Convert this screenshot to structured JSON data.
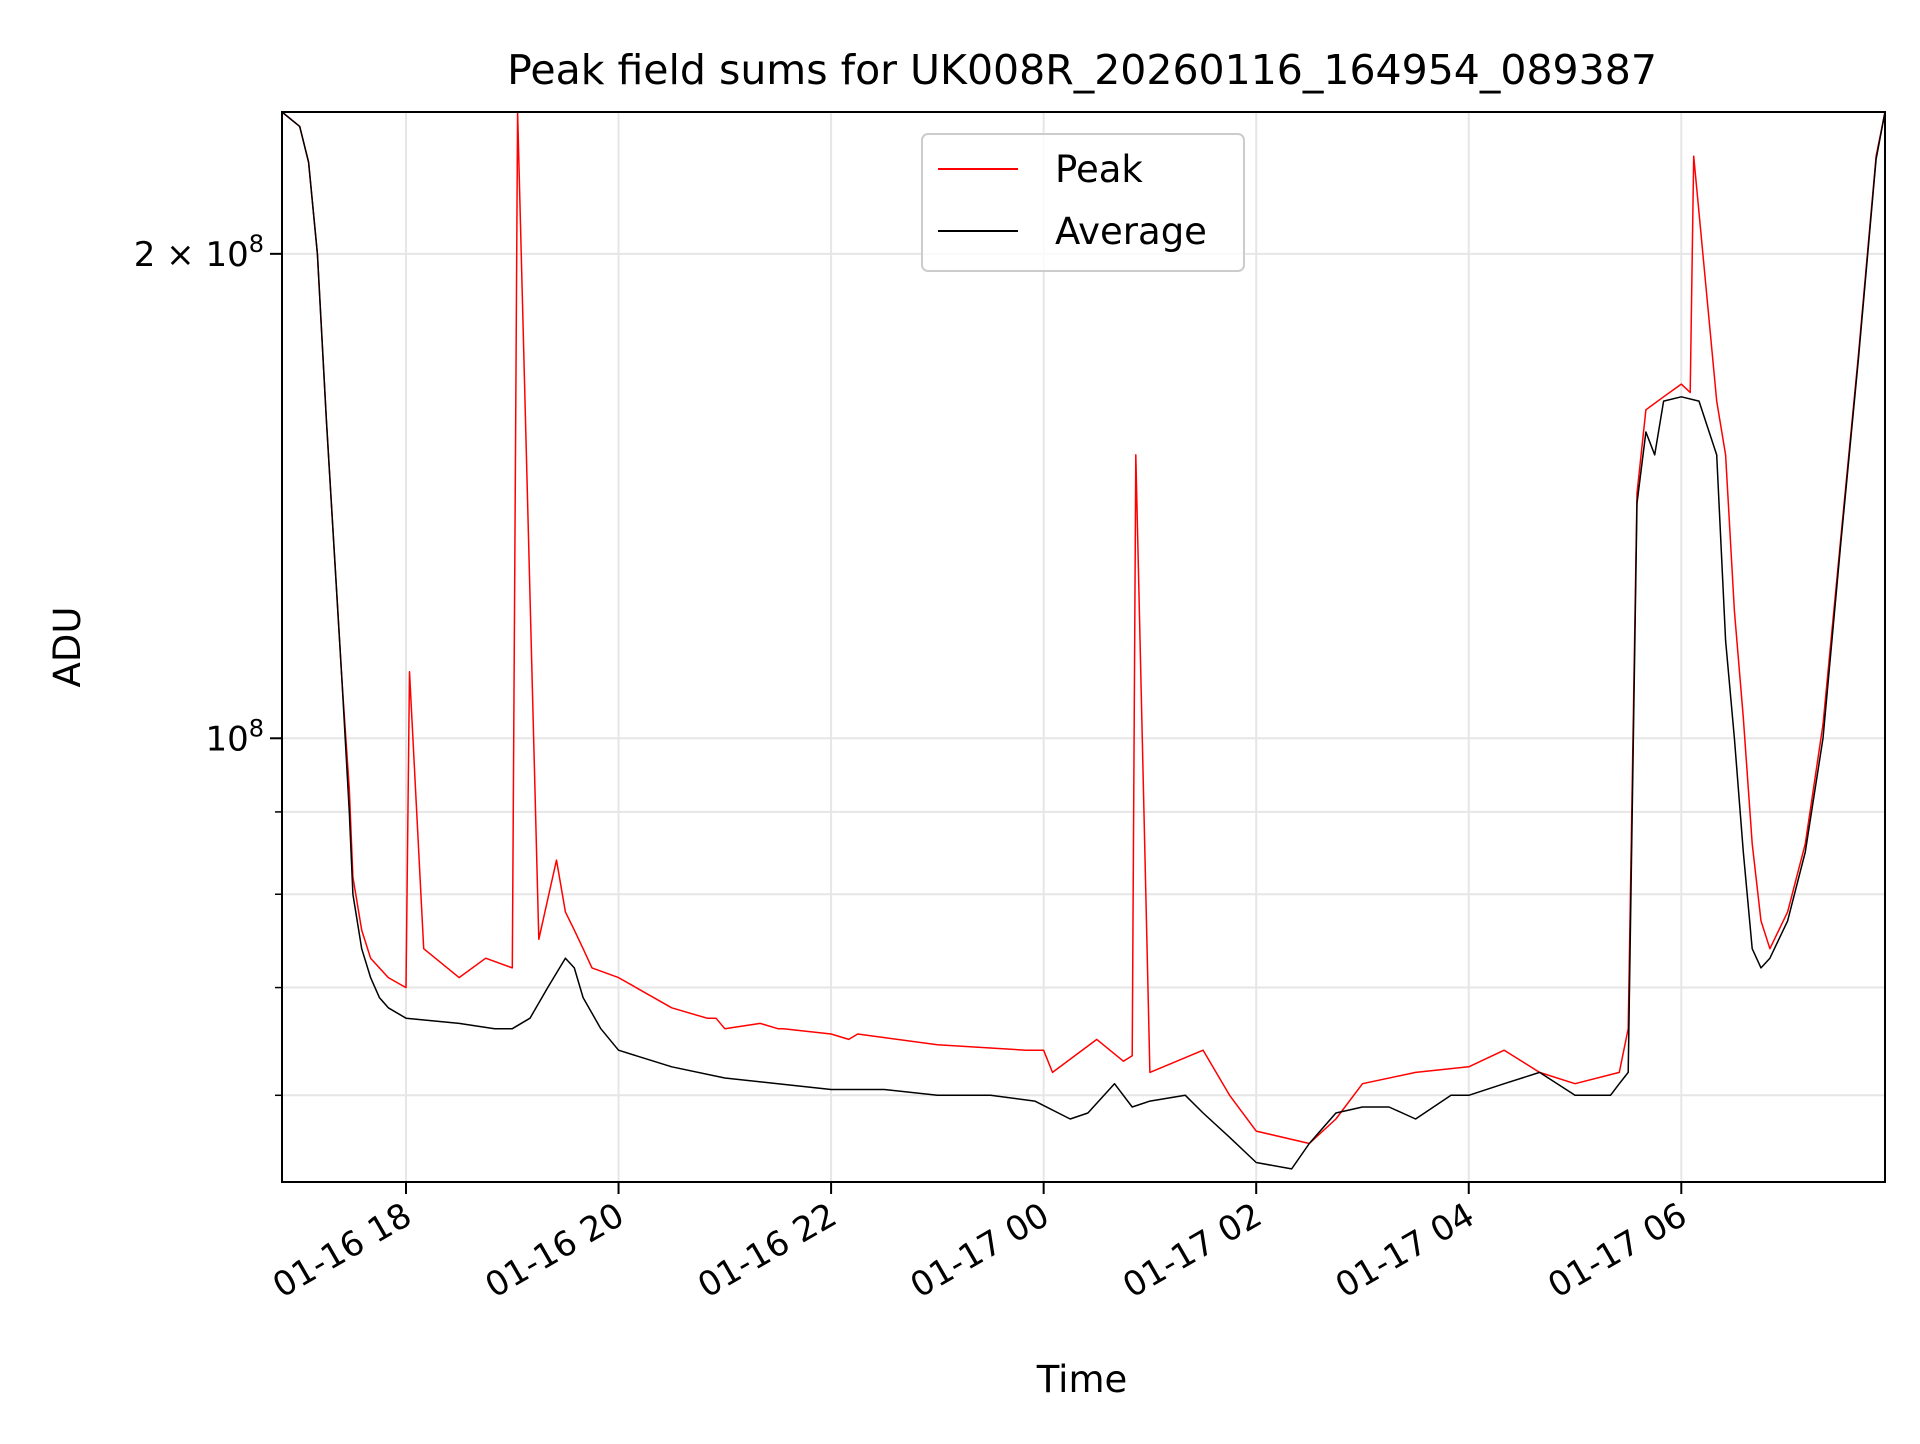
{
  "chart_data": {
    "type": "line",
    "title": "Peak field sums for UK008R_20260116_164954_089387",
    "xlabel": "Time",
    "ylabel": "ADU",
    "y_scale": "log",
    "ylim": [
      53000000,
      245000000
    ],
    "xlim": [
      "2026-01-16 16:50",
      "2026-01-17 07:55"
    ],
    "grid": true,
    "legend": {
      "position": "upper center",
      "entries": [
        "Peak",
        "Average"
      ]
    },
    "x_ticks": [
      {
        "t": "2026-01-16 18:00",
        "label": "01-16 18"
      },
      {
        "t": "2026-01-16 20:00",
        "label": "01-16 20"
      },
      {
        "t": "2026-01-16 22:00",
        "label": "01-16 22"
      },
      {
        "t": "2026-01-17 00:00",
        "label": "01-17 00"
      },
      {
        "t": "2026-01-17 02:00",
        "label": "01-17 02"
      },
      {
        "t": "2026-01-17 04:00",
        "label": "01-17 04"
      },
      {
        "t": "2026-01-17 06:00",
        "label": "01-17 06"
      }
    ],
    "y_ticks": [
      {
        "value": 100000000,
        "label": "10",
        "exp": "8"
      },
      {
        "value": 200000000,
        "label": "2 × 10",
        "exp": "8"
      }
    ],
    "y_minor_ticks": [
      60000000,
      70000000,
      80000000,
      90000000
    ],
    "series": [
      {
        "name": "Peak",
        "color": "#ff0000",
        "x": [
          "2026-01-16 16:50",
          "2026-01-16 17:00",
          "2026-01-16 17:05",
          "2026-01-16 17:10",
          "2026-01-16 17:15",
          "2026-01-16 17:20",
          "2026-01-16 17:24",
          "2026-01-16 17:28",
          "2026-01-16 17:30",
          "2026-01-16 17:35",
          "2026-01-16 17:40",
          "2026-01-16 17:45",
          "2026-01-16 17:50",
          "2026-01-16 18:00",
          "2026-01-16 18:02",
          "2026-01-16 18:10",
          "2026-01-16 18:30",
          "2026-01-16 18:45",
          "2026-01-16 19:00",
          "2026-01-16 19:03",
          "2026-01-16 19:15",
          "2026-01-16 19:25",
          "2026-01-16 19:30",
          "2026-01-16 19:35",
          "2026-01-16 19:40",
          "2026-01-16 19:45",
          "2026-01-16 20:00",
          "2026-01-16 20:30",
          "2026-01-16 20:50",
          "2026-01-16 20:55",
          "2026-01-16 21:00",
          "2026-01-16 21:20",
          "2026-01-16 21:30",
          "2026-01-16 21:33",
          "2026-01-16 22:00",
          "2026-01-16 22:10",
          "2026-01-16 22:15",
          "2026-01-16 23:00",
          "2026-01-16 23:50",
          "2026-01-17 00:00",
          "2026-01-17 00:05",
          "2026-01-17 00:30",
          "2026-01-17 00:45",
          "2026-01-17 00:50",
          "2026-01-17 00:52",
          "2026-01-17 01:00",
          "2026-01-17 01:30",
          "2026-01-17 01:45",
          "2026-01-17 02:00",
          "2026-01-17 02:30",
          "2026-01-17 02:45",
          "2026-01-17 03:00",
          "2026-01-17 03:30",
          "2026-01-17 04:00",
          "2026-01-17 04:20",
          "2026-01-17 04:40",
          "2026-01-17 05:00",
          "2026-01-17 05:25",
          "2026-01-17 05:30",
          "2026-01-17 05:35",
          "2026-01-17 05:40",
          "2026-01-17 05:50",
          "2026-01-17 06:00",
          "2026-01-17 06:05",
          "2026-01-17 06:07",
          "2026-01-17 06:20",
          "2026-01-17 06:25",
          "2026-01-17 06:30",
          "2026-01-17 06:35",
          "2026-01-17 06:40",
          "2026-01-17 06:45",
          "2026-01-17 06:50",
          "2026-01-17 07:00",
          "2026-01-17 07:10",
          "2026-01-17 07:20",
          "2026-01-17 07:30",
          "2026-01-17 07:40",
          "2026-01-17 07:50",
          "2026-01-17 07:55"
        ],
        "values": [
          245000000,
          240000000,
          228000000,
          200000000,
          158000000,
          128000000,
          108000000,
          93000000,
          82000000,
          76000000,
          73000000,
          72000000,
          71000000,
          70000000,
          110000000,
          74000000,
          71000000,
          73000000,
          72000000,
          245000000,
          75000000,
          84000000,
          78000000,
          76000000,
          74000000,
          72000000,
          71000000,
          68000000,
          67000000,
          67000000,
          66000000,
          66500000,
          66000000,
          66000000,
          65500000,
          65000000,
          65500000,
          64500000,
          64000000,
          64000000,
          62000000,
          65000000,
          63000000,
          63500000,
          150000000,
          62000000,
          64000000,
          60000000,
          57000000,
          56000000,
          58000000,
          61000000,
          62000000,
          62500000,
          64000000,
          62000000,
          61000000,
          62000000,
          66000000,
          142000000,
          160000000,
          163000000,
          166000000,
          164000000,
          230000000,
          162000000,
          150000000,
          120000000,
          103000000,
          86000000,
          77000000,
          74000000,
          78000000,
          86000000,
          102000000,
          133000000,
          173000000,
          230000000,
          245000000
        ]
      },
      {
        "name": "Average",
        "color": "#000000",
        "x": [
          "2026-01-16 16:50",
          "2026-01-16 17:00",
          "2026-01-16 17:05",
          "2026-01-16 17:10",
          "2026-01-16 17:15",
          "2026-01-16 17:20",
          "2026-01-16 17:24",
          "2026-01-16 17:28",
          "2026-01-16 17:30",
          "2026-01-16 17:35",
          "2026-01-16 17:40",
          "2026-01-16 17:45",
          "2026-01-16 17:50",
          "2026-01-16 18:00",
          "2026-01-16 18:30",
          "2026-01-16 18:50",
          "2026-01-16 19:00",
          "2026-01-16 19:10",
          "2026-01-16 19:20",
          "2026-01-16 19:30",
          "2026-01-16 19:35",
          "2026-01-16 19:40",
          "2026-01-16 19:50",
          "2026-01-16 20:00",
          "2026-01-16 20:30",
          "2026-01-16 21:00",
          "2026-01-16 21:30",
          "2026-01-16 22:00",
          "2026-01-16 22:30",
          "2026-01-16 23:00",
          "2026-01-16 23:30",
          "2026-01-16 23:55",
          "2026-01-17 00:15",
          "2026-01-17 00:25",
          "2026-01-17 00:40",
          "2026-01-17 00:50",
          "2026-01-17 01:00",
          "2026-01-17 01:20",
          "2026-01-17 01:30",
          "2026-01-17 01:45",
          "2026-01-17 02:00",
          "2026-01-17 02:20",
          "2026-01-17 02:30",
          "2026-01-17 02:45",
          "2026-01-17 03:00",
          "2026-01-17 03:15",
          "2026-01-17 03:30",
          "2026-01-17 03:50",
          "2026-01-17 04:00",
          "2026-01-17 04:20",
          "2026-01-17 04:40",
          "2026-01-17 05:00",
          "2026-01-17 05:20",
          "2026-01-17 05:25",
          "2026-01-17 05:30",
          "2026-01-17 05:35",
          "2026-01-17 05:40",
          "2026-01-17 05:45",
          "2026-01-17 05:50",
          "2026-01-17 06:00",
          "2026-01-17 06:10",
          "2026-01-17 06:20",
          "2026-01-17 06:25",
          "2026-01-17 06:30",
          "2026-01-17 06:35",
          "2026-01-17 06:40",
          "2026-01-17 06:45",
          "2026-01-17 06:50",
          "2026-01-17 07:00",
          "2026-01-17 07:10",
          "2026-01-17 07:20",
          "2026-01-17 07:30",
          "2026-01-17 07:40",
          "2026-01-17 07:50",
          "2026-01-17 07:55"
        ],
        "values": [
          245000000,
          240000000,
          228000000,
          200000000,
          158000000,
          128000000,
          108000000,
          90000000,
          80000000,
          74000000,
          71000000,
          69000000,
          68000000,
          67000000,
          66500000,
          66000000,
          66000000,
          67000000,
          70000000,
          73000000,
          72000000,
          69000000,
          66000000,
          64000000,
          62500000,
          61500000,
          61000000,
          60500000,
          60500000,
          60000000,
          60000000,
          59500000,
          58000000,
          58500000,
          61000000,
          59000000,
          59500000,
          60000000,
          58500000,
          56500000,
          54500000,
          54000000,
          56000000,
          58500000,
          59000000,
          59000000,
          58000000,
          60000000,
          60000000,
          61000000,
          62000000,
          60000000,
          60000000,
          61000000,
          62000000,
          140000000,
          155000000,
          150000000,
          162000000,
          163000000,
          162000000,
          150000000,
          115000000,
          100000000,
          85000000,
          74000000,
          72000000,
          73000000,
          77000000,
          85000000,
          100000000,
          132000000,
          172000000,
          229000000,
          245000000
        ]
      }
    ]
  }
}
